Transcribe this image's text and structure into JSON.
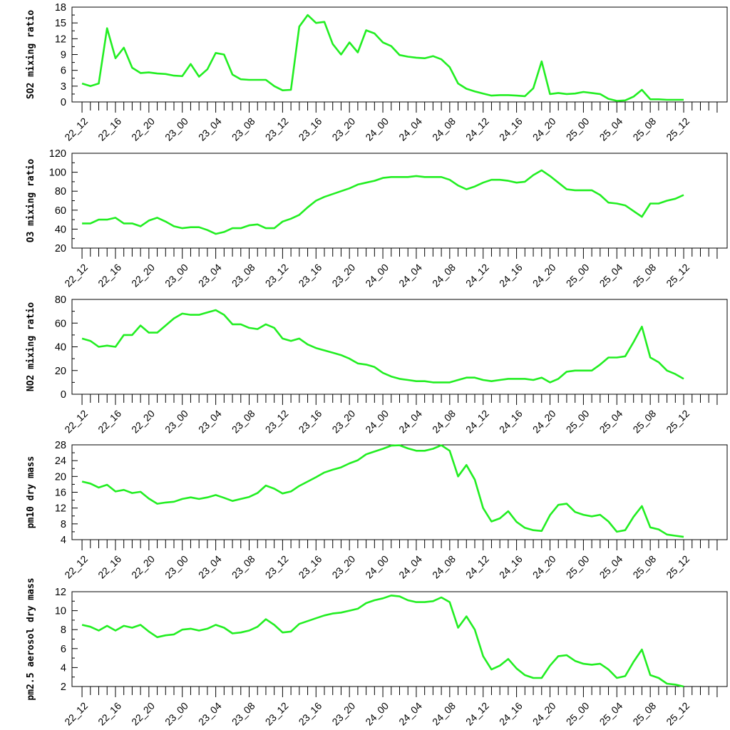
{
  "x_tick_labels": [
    "22_12",
    "22_16",
    "22_20",
    "23_00",
    "23_04",
    "23_08",
    "23_12",
    "23_16",
    "23_20",
    "24_00",
    "24_04",
    "24_08",
    "24_12",
    "24_16",
    "24_20",
    "25_00",
    "25_04",
    "25_08",
    "25_12"
  ],
  "line_color": "#22ee22",
  "chart_data": [
    {
      "type": "line",
      "ylabel": "SO2 mixing ratio",
      "ylim": [
        0,
        18
      ],
      "yticks": [
        0,
        3,
        6,
        9,
        12,
        15,
        18
      ],
      "x_start": 0,
      "x_end": 72,
      "xlim": [
        -1.2,
        77.2
      ],
      "values": [
        3.5,
        3.0,
        3.5,
        14.0,
        8.3,
        10.3,
        6.5,
        5.5,
        5.6,
        5.4,
        5.3,
        5.0,
        4.9,
        7.2,
        4.8,
        6.2,
        9.3,
        9.0,
        5.2,
        4.3,
        4.2,
        4.2,
        4.2,
        3.0,
        2.2,
        2.3,
        14.3,
        16.5,
        15.0,
        15.2,
        11.0,
        9.0,
        11.3,
        9.4,
        13.6,
        13.0,
        11.3,
        10.6,
        8.9,
        8.6,
        8.4,
        8.3,
        8.7,
        8.1,
        6.6,
        3.5,
        2.5,
        2.0,
        1.6,
        1.2,
        1.3,
        1.3,
        1.2,
        1.1,
        2.6,
        7.7,
        1.5,
        1.7,
        1.5,
        1.6,
        1.9,
        1.7,
        1.5,
        0.6,
        0.2,
        0.3,
        1.0,
        2.3,
        0.5,
        0.5,
        0.4,
        0.4,
        0.4
      ]
    },
    {
      "type": "line",
      "ylabel": "O3 mixing ratio",
      "ylim": [
        20,
        120
      ],
      "yticks": [
        20,
        40,
        60,
        80,
        100,
        120
      ],
      "x_start": 0,
      "x_end": 72,
      "xlim": [
        -1.2,
        77.2
      ],
      "values": [
        46,
        46,
        50,
        50,
        52,
        46,
        46,
        43,
        49,
        52,
        48,
        43,
        41,
        42,
        42,
        39,
        35,
        37,
        41,
        41,
        44,
        45,
        41,
        41,
        48,
        51,
        55,
        63,
        70,
        74,
        77,
        80,
        83,
        87,
        89,
        91,
        94,
        95,
        95,
        95,
        96,
        95,
        95,
        95,
        92,
        86,
        82,
        85,
        89,
        92,
        92,
        91,
        89,
        90,
        97,
        102,
        96,
        89,
        82,
        81,
        81,
        81,
        76,
        68,
        67,
        65,
        59,
        53,
        67,
        67,
        70,
        72,
        76
      ]
    },
    {
      "type": "line",
      "ylabel": "NO2 mixing ratio",
      "ylim": [
        0,
        80
      ],
      "yticks": [
        0,
        20,
        40,
        60,
        80
      ],
      "x_start": 0,
      "x_end": 72,
      "xlim": [
        -1.2,
        77.2
      ],
      "values": [
        47,
        45,
        40,
        41,
        40,
        50,
        50,
        58,
        52,
        52,
        58,
        64,
        68,
        67,
        67,
        69,
        71,
        67,
        59,
        59,
        56,
        55,
        59,
        56,
        47,
        45,
        47,
        42,
        39,
        37,
        35,
        33,
        30,
        26,
        25,
        23,
        18,
        15,
        13,
        12,
        11,
        11,
        10,
        10,
        10,
        12,
        14,
        14,
        12,
        11,
        12,
        13,
        13,
        13,
        12,
        14,
        10,
        13,
        19,
        20,
        20,
        20,
        25,
        31,
        31,
        32,
        44,
        57,
        31,
        27,
        20,
        17,
        13
      ]
    },
    {
      "type": "line",
      "ylabel": "pm10 dry mass",
      "ylim": [
        4,
        28
      ],
      "yticks": [
        4,
        8,
        12,
        16,
        20,
        24,
        28
      ],
      "x_start": 0,
      "x_end": 72,
      "xlim": [
        -1.2,
        77.2
      ],
      "values": [
        18.7,
        18.2,
        17.2,
        17.9,
        16.2,
        16.6,
        15.8,
        16.1,
        14.4,
        13.1,
        13.4,
        13.6,
        14.3,
        14.7,
        14.3,
        14.7,
        15.3,
        14.6,
        13.8,
        14.3,
        14.8,
        15.8,
        17.7,
        16.9,
        15.7,
        16.2,
        17.6,
        18.7,
        19.8,
        21.0,
        21.7,
        22.3,
        23.3,
        24.1,
        25.6,
        26.3,
        27.0,
        27.8,
        27.9,
        27.1,
        26.5,
        26.5,
        27.0,
        27.9,
        26.5,
        20.0,
        22.9,
        19.2,
        12.0,
        8.6,
        9.4,
        11.2,
        8.5,
        7.0,
        6.4,
        6.2,
        10.2,
        12.8,
        13.1,
        11.0,
        10.3,
        9.9,
        10.3,
        8.6,
        6.0,
        6.4,
        9.8,
        12.5,
        7.1,
        6.6,
        5.3,
        5.0,
        4.7
      ]
    },
    {
      "type": "line",
      "ylabel": "pm2.5 aerosol dry mass",
      "ylim": [
        2,
        12
      ],
      "yticks": [
        2,
        4,
        6,
        8,
        10,
        12
      ],
      "x_start": 0,
      "x_end": 72,
      "xlim": [
        -1.2,
        77.2
      ],
      "values": [
        8.5,
        8.3,
        7.9,
        8.4,
        7.9,
        8.4,
        8.2,
        8.5,
        7.8,
        7.2,
        7.4,
        7.5,
        8.0,
        8.1,
        7.9,
        8.1,
        8.5,
        8.2,
        7.6,
        7.7,
        7.9,
        8.3,
        9.1,
        8.5,
        7.7,
        7.8,
        8.6,
        8.9,
        9.2,
        9.5,
        9.7,
        9.8,
        10.0,
        10.2,
        10.8,
        11.1,
        11.3,
        11.6,
        11.5,
        11.1,
        10.9,
        10.9,
        11.0,
        11.4,
        10.9,
        8.2,
        9.4,
        8.0,
        5.2,
        3.8,
        4.2,
        4.9,
        3.9,
        3.2,
        2.9,
        2.9,
        4.2,
        5.2,
        5.3,
        4.7,
        4.4,
        4.3,
        4.4,
        3.8,
        2.9,
        3.1,
        4.6,
        5.9,
        3.2,
        2.9,
        2.3,
        2.2,
        2.0
      ]
    }
  ]
}
